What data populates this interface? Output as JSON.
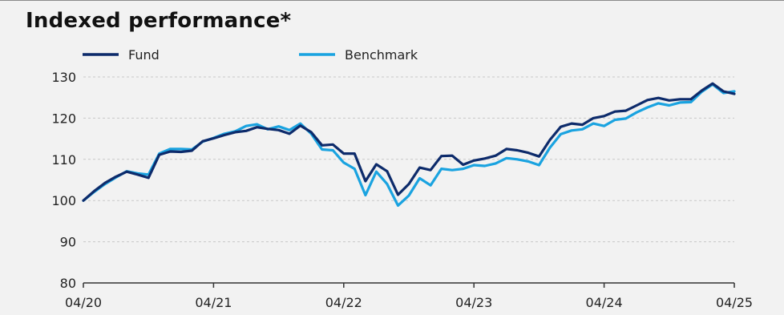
{
  "colors": {
    "fund": "#0d2b6b",
    "benchmark": "#1aa3e0",
    "grid": "#c8c8c8",
    "axis": "#333333",
    "background": "#f2f2f2"
  },
  "chart_data": {
    "type": "line",
    "title": "Indexed performance*",
    "xlabel": "",
    "ylabel": "",
    "ylim": [
      80,
      130
    ],
    "xlim": [
      "2020-04",
      "2025-04"
    ],
    "yticks": [
      "80",
      "90",
      "100",
      "110",
      "120",
      "130"
    ],
    "xticks": [
      "04/20",
      "04/21",
      "04/22",
      "04/23",
      "04/24",
      "04/25"
    ],
    "grid": "horizontal dashed",
    "legend": "top-left",
    "x": [
      "2020-04",
      "2020-05",
      "2020-06",
      "2020-07",
      "2020-08",
      "2020-09",
      "2020-10",
      "2020-11",
      "2020-12",
      "2021-01",
      "2021-02",
      "2021-03",
      "2021-04",
      "2021-05",
      "2021-06",
      "2021-07",
      "2021-08",
      "2021-09",
      "2021-10",
      "2021-11",
      "2021-12",
      "2022-01",
      "2022-02",
      "2022-03",
      "2022-04",
      "2022-05",
      "2022-06",
      "2022-07",
      "2022-08",
      "2022-09",
      "2022-10",
      "2022-11",
      "2022-12",
      "2023-01",
      "2023-02",
      "2023-03",
      "2023-04",
      "2023-05",
      "2023-06",
      "2023-07",
      "2023-08",
      "2023-09",
      "2023-10",
      "2023-11",
      "2023-12",
      "2024-01",
      "2024-02",
      "2024-03",
      "2024-04",
      "2024-05",
      "2024-06",
      "2024-07",
      "2024-08",
      "2024-09",
      "2024-10",
      "2024-11",
      "2024-12",
      "2025-01",
      "2025-02",
      "2025-03",
      "2025-04"
    ],
    "series": [
      {
        "name": "Fund",
        "values": [
          100.0,
          102.3,
          104.3,
          105.8,
          107.0,
          106.3,
          105.5,
          111.1,
          111.9,
          111.8,
          112.1,
          114.4,
          115.1,
          115.9,
          116.6,
          116.9,
          117.8,
          117.4,
          117.1,
          116.2,
          118.2,
          116.6,
          113.4,
          113.6,
          111.4,
          111.4,
          104.7,
          108.8,
          107.1,
          101.4,
          104.0,
          108.0,
          107.4,
          110.8,
          110.9,
          108.7,
          109.7,
          110.2,
          110.9,
          112.5,
          112.2,
          111.6,
          110.7,
          114.7,
          117.9,
          118.7,
          118.4,
          120.0,
          120.5,
          121.6,
          121.8,
          123.1,
          124.4,
          124.9,
          124.3,
          124.6,
          124.6,
          126.7,
          128.4,
          126.5,
          125.9
        ]
      },
      {
        "name": "Benchmark",
        "values": [
          100.0,
          102.1,
          104.0,
          105.6,
          107.1,
          106.6,
          106.3,
          111.4,
          112.5,
          112.5,
          112.4,
          114.3,
          115.2,
          116.2,
          116.8,
          118.1,
          118.5,
          117.3,
          118.0,
          117.1,
          118.7,
          116.2,
          112.4,
          112.2,
          109.2,
          107.7,
          101.3,
          107.0,
          104.0,
          98.8,
          101.2,
          105.4,
          103.7,
          107.7,
          107.4,
          107.7,
          108.6,
          108.4,
          109.0,
          110.3,
          110.0,
          109.5,
          108.6,
          112.8,
          116.1,
          117.0,
          117.3,
          118.7,
          118.1,
          119.6,
          119.9,
          121.4,
          122.6,
          123.6,
          123.1,
          123.8,
          123.9,
          126.4,
          128.2,
          126.1,
          126.5
        ]
      }
    ]
  }
}
